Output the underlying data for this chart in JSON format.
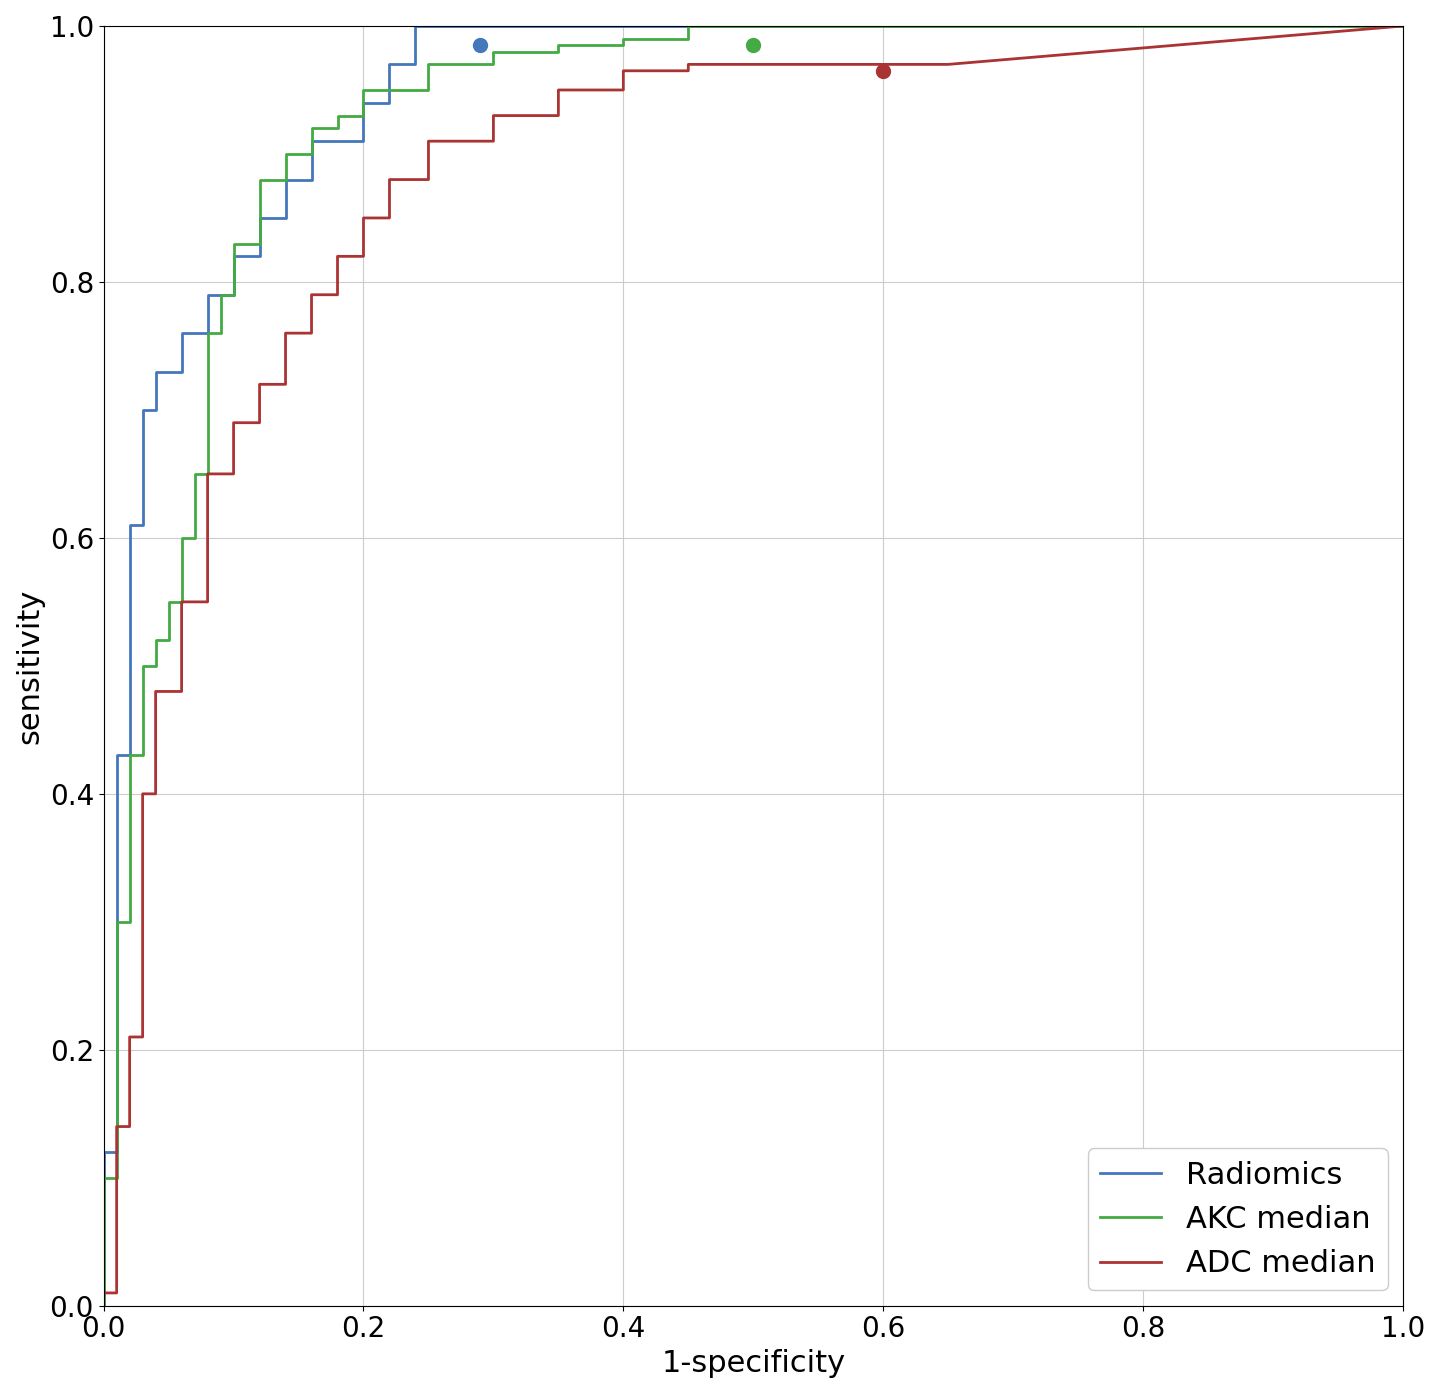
{
  "xlabel": "1-specificity",
  "ylabel": "sensitivity",
  "xlim": [
    0.0,
    1.0
  ],
  "ylim": [
    0.0,
    1.0
  ],
  "grid": true,
  "background_color": "#ffffff",
  "curves": [
    {
      "fpr": [
        0.0,
        0.0,
        0.01,
        0.01,
        0.02,
        0.02,
        0.03,
        0.03,
        0.04,
        0.04,
        0.06,
        0.06,
        0.08,
        0.08,
        0.1,
        0.1,
        0.12,
        0.12,
        0.14,
        0.14,
        0.16,
        0.16,
        0.18,
        0.18,
        0.2,
        0.2,
        0.22,
        0.22,
        0.24,
        0.24,
        0.26,
        0.26,
        0.28,
        0.28,
        0.3,
        0.3,
        1.0
      ],
      "tpr": [
        0.0,
        0.12,
        0.12,
        0.43,
        0.43,
        0.61,
        0.61,
        0.7,
        0.7,
        0.73,
        0.73,
        0.76,
        0.76,
        0.79,
        0.79,
        0.82,
        0.82,
        0.85,
        0.85,
        0.88,
        0.88,
        0.91,
        0.91,
        0.91,
        0.91,
        0.94,
        0.94,
        0.97,
        0.97,
        1.0,
        1.0,
        1.0,
        1.0,
        1.0,
        1.0,
        1.0,
        1.0
      ],
      "color": "#4477BB",
      "opt_x": 0.29,
      "opt_y": 0.985,
      "label": "Radiomics"
    },
    {
      "fpr": [
        0.0,
        0.0,
        0.01,
        0.01,
        0.02,
        0.02,
        0.03,
        0.03,
        0.04,
        0.04,
        0.05,
        0.05,
        0.06,
        0.06,
        0.07,
        0.07,
        0.08,
        0.08,
        0.09,
        0.09,
        0.1,
        0.1,
        0.12,
        0.12,
        0.14,
        0.14,
        0.16,
        0.16,
        0.18,
        0.18,
        0.2,
        0.2,
        0.25,
        0.25,
        0.3,
        0.3,
        0.35,
        0.35,
        0.4,
        0.4,
        0.45,
        0.45,
        0.5,
        0.5,
        1.0
      ],
      "tpr": [
        0.0,
        0.1,
        0.1,
        0.3,
        0.3,
        0.43,
        0.43,
        0.5,
        0.5,
        0.52,
        0.52,
        0.55,
        0.55,
        0.6,
        0.6,
        0.65,
        0.65,
        0.76,
        0.76,
        0.79,
        0.79,
        0.83,
        0.83,
        0.88,
        0.88,
        0.9,
        0.9,
        0.92,
        0.92,
        0.93,
        0.93,
        0.95,
        0.95,
        0.97,
        0.97,
        0.98,
        0.98,
        0.985,
        0.985,
        0.99,
        0.99,
        1.0,
        1.0,
        1.0,
        1.0
      ],
      "color": "#44AA44",
      "opt_x": 0.5,
      "opt_y": 0.985,
      "label": "AKC median"
    },
    {
      "fpr": [
        0.0,
        0.0,
        0.01,
        0.01,
        0.02,
        0.02,
        0.03,
        0.03,
        0.04,
        0.04,
        0.06,
        0.06,
        0.08,
        0.08,
        0.1,
        0.1,
        0.12,
        0.12,
        0.14,
        0.14,
        0.16,
        0.16,
        0.18,
        0.18,
        0.2,
        0.2,
        0.22,
        0.22,
        0.25,
        0.25,
        0.3,
        0.3,
        0.35,
        0.35,
        0.4,
        0.4,
        0.45,
        0.45,
        0.5,
        0.5,
        0.55,
        0.55,
        0.6,
        0.6,
        0.65,
        0.65,
        1.0
      ],
      "tpr": [
        0.0,
        0.01,
        0.01,
        0.14,
        0.14,
        0.21,
        0.21,
        0.4,
        0.4,
        0.48,
        0.48,
        0.55,
        0.55,
        0.65,
        0.65,
        0.69,
        0.69,
        0.72,
        0.72,
        0.76,
        0.76,
        0.79,
        0.79,
        0.82,
        0.82,
        0.85,
        0.85,
        0.88,
        0.88,
        0.91,
        0.91,
        0.93,
        0.93,
        0.95,
        0.95,
        0.965,
        0.965,
        0.97,
        0.97,
        0.97,
        0.97,
        0.97,
        0.97,
        0.97,
        0.97,
        0.97,
        1.0
      ],
      "color": "#AA3333",
      "opt_x": 0.6,
      "opt_y": 0.965,
      "label": "ADC median"
    }
  ],
  "legend_loc": "lower right",
  "tick_fontsize": 20,
  "label_fontsize": 22,
  "legend_fontsize": 22,
  "linewidth": 2.0,
  "marker_size": 10
}
